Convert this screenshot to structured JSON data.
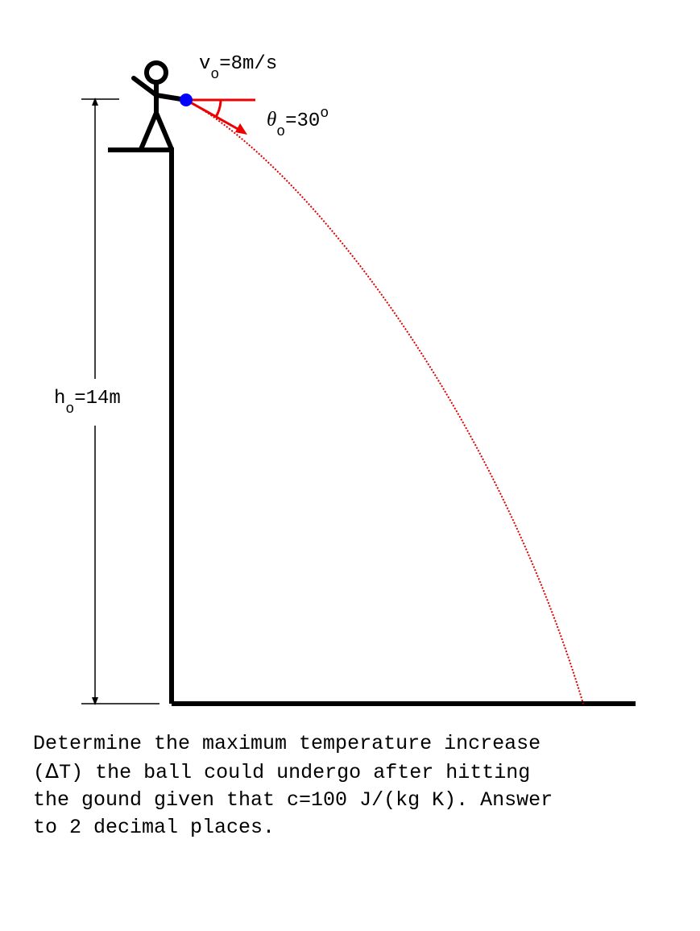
{
  "diagram": {
    "velocity": {
      "symbol": "v",
      "subscript": "o",
      "value": "=8m/s"
    },
    "angle": {
      "symbol": "θ",
      "subscript": "o",
      "value": "=30",
      "unit": "o"
    },
    "height": {
      "symbol": "h",
      "subscript": "o",
      "value": "=14m"
    },
    "colors": {
      "structure": "#000000",
      "trajectory": "#dd0000",
      "velocity_vector": "#ee0000",
      "ball": "#0000ff"
    }
  },
  "problem": {
    "line1": "Determine the maximum temperature increase",
    "line2_open": "(",
    "delta": "Δ",
    "line2_rest": "T) the ball could undergo after hitting",
    "line3": "the gound given that c=100 J/(kg K). Answer",
    "line4": "to 2 decimal places."
  }
}
